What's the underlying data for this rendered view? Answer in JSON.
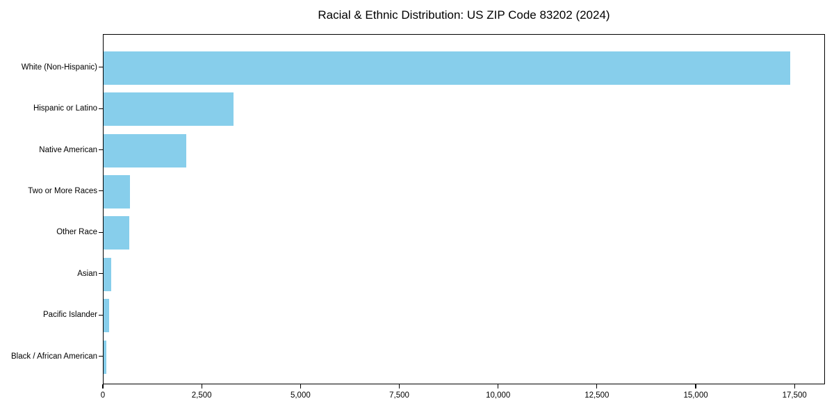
{
  "chart_data": {
    "type": "bar",
    "orientation": "horizontal",
    "title": "Racial & Ethnic Distribution: US ZIP Code 83202 (2024)",
    "xlabel": "",
    "ylabel": "",
    "categories": [
      "White (Non-Hispanic)",
      "Hispanic or Latino",
      "Native American",
      "Two or More Races",
      "Other Race",
      "Asian",
      "Pacific Islander",
      "Black / African American"
    ],
    "values": [
      17400,
      3300,
      2100,
      670,
      650,
      190,
      140,
      75
    ],
    "xlim": [
      0,
      18270
    ],
    "x_ticks": [
      {
        "value": 0,
        "label": "0"
      },
      {
        "value": 2500,
        "label": "2,500"
      },
      {
        "value": 5000,
        "label": "5,000"
      },
      {
        "value": 7500,
        "label": "7,500"
      },
      {
        "value": 10000,
        "label": "10,000"
      },
      {
        "value": 12500,
        "label": "12,500"
      },
      {
        "value": 15000,
        "label": "15,000"
      },
      {
        "value": 17500,
        "label": "17,500"
      }
    ],
    "bar_color": "#87CEEB",
    "background_color": "#ffffff",
    "spine_color": "#000000",
    "grid": false,
    "legend": null
  }
}
